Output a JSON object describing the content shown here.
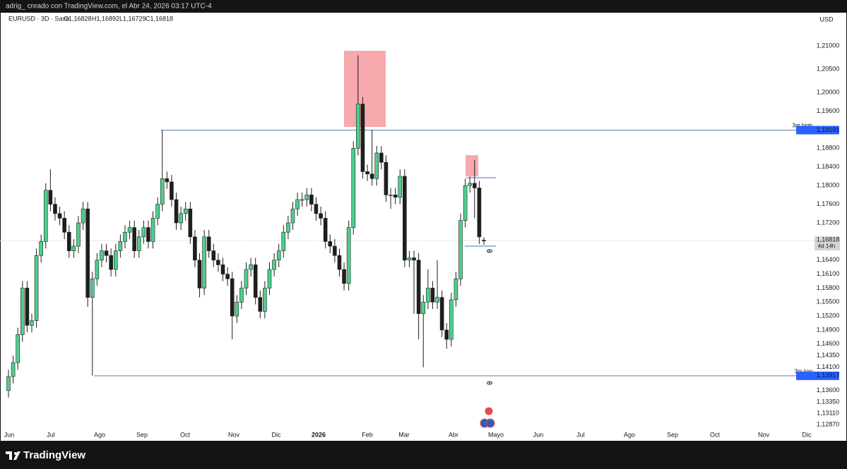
{
  "header": "adrig_ creado con TradingView.com, el Abr 24, 2026 03:17 UTC-4",
  "brand": "TradingView",
  "chart_data": {
    "type": "candlestick",
    "legend": {
      "symbol": "EURUSD · 3D · Saxo",
      "open": "O1,16828",
      "high": "H1,16892",
      "low": "L1,16729",
      "close": "C1,16818"
    },
    "currency": "USD",
    "up_color": "#4fcf8d",
    "down_color": "#1e1e1e",
    "ylim": [
      1.12522,
      1.21712
    ],
    "yticks": [
      {
        "value": 1.21,
        "label": "1,21000"
      },
      {
        "value": 1.205,
        "label": "1,20500"
      },
      {
        "value": 1.2,
        "label": "1,20000"
      },
      {
        "value": 1.196,
        "label": "1,19600"
      },
      {
        "value": 1.188,
        "label": "1,18800"
      },
      {
        "value": 1.184,
        "label": "1,18400"
      },
      {
        "value": 1.18,
        "label": "1,18000"
      },
      {
        "value": 1.176,
        "label": "1,17600"
      },
      {
        "value": 1.172,
        "label": "1,17200"
      },
      {
        "value": 1.164,
        "label": "1,16400"
      },
      {
        "value": 1.161,
        "label": "1,16100"
      },
      {
        "value": 1.158,
        "label": "1,15800"
      },
      {
        "value": 1.155,
        "label": "1,15500"
      },
      {
        "value": 1.152,
        "label": "1,15200"
      },
      {
        "value": 1.149,
        "label": "1,14900"
      },
      {
        "value": 1.146,
        "label": "1,14600"
      },
      {
        "value": 1.1435,
        "label": "1,14350"
      },
      {
        "value": 1.141,
        "label": "1,14100"
      },
      {
        "value": 1.136,
        "label": "1,13600"
      },
      {
        "value": 1.1335,
        "label": "1,13350"
      },
      {
        "value": 1.1311,
        "label": "1,13110"
      },
      {
        "value": 1.1287,
        "label": "1,12870"
      }
    ],
    "xticks": [
      "Jun",
      "Jul",
      "Ago",
      "Sep",
      "Oct",
      "Nov",
      "Dic",
      "2026",
      "Feb",
      "Mar",
      "Abr",
      "Mayo",
      "Jun",
      "Jul",
      "Ago",
      "Sep",
      "Oct",
      "Nov",
      "Dic"
    ],
    "levels": [
      {
        "name": "3m high",
        "value": 1.19191,
        "label": "1,19191"
      },
      {
        "name": "3m low",
        "value": 1.13917,
        "label": "1,13917"
      }
    ],
    "last_price": {
      "value": 1.16818,
      "label": "1,16818",
      "countdown": "4d 14h"
    },
    "ohlc": [
      [
        1.136,
        1.1405,
        1.1345,
        1.139
      ],
      [
        1.139,
        1.1435,
        1.1375,
        1.142
      ],
      [
        1.142,
        1.1495,
        1.1405,
        1.148
      ],
      [
        1.148,
        1.1595,
        1.1465,
        1.158
      ],
      [
        1.158,
        1.1595,
        1.1485,
        1.15
      ],
      [
        1.15,
        1.1525,
        1.1485,
        1.151
      ],
      [
        1.151,
        1.1665,
        1.1495,
        1.165
      ],
      [
        1.165,
        1.1695,
        1.1635,
        1.168
      ],
      [
        1.168,
        1.1805,
        1.1665,
        1.179
      ],
      [
        1.179,
        1.1835,
        1.1745,
        1.176
      ],
      [
        1.176,
        1.1775,
        1.1725,
        1.174
      ],
      [
        1.174,
        1.1755,
        1.1715,
        1.173
      ],
      [
        1.173,
        1.1745,
        1.1685,
        1.17
      ],
      [
        1.17,
        1.1715,
        1.1645,
        1.166
      ],
      [
        1.166,
        1.1685,
        1.1645,
        1.167
      ],
      [
        1.167,
        1.1735,
        1.1655,
        1.172
      ],
      [
        1.172,
        1.1765,
        1.1705,
        1.175
      ],
      [
        1.175,
        1.1765,
        1.154,
        1.156
      ],
      [
        1.156,
        1.1615,
        1.1392,
        1.16
      ],
      [
        1.16,
        1.1655,
        1.1585,
        1.164
      ],
      [
        1.164,
        1.1675,
        1.1625,
        1.166
      ],
      [
        1.166,
        1.1675,
        1.1635,
        1.165
      ],
      [
        1.165,
        1.1665,
        1.1605,
        1.162
      ],
      [
        1.162,
        1.1675,
        1.1605,
        1.166
      ],
      [
        1.166,
        1.1695,
        1.1645,
        1.168
      ],
      [
        1.168,
        1.1715,
        1.1665,
        1.17
      ],
      [
        1.17,
        1.1725,
        1.1685,
        1.171
      ],
      [
        1.171,
        1.1725,
        1.1645,
        1.166
      ],
      [
        1.166,
        1.1705,
        1.1645,
        1.169
      ],
      [
        1.169,
        1.1725,
        1.1675,
        1.171
      ],
      [
        1.171,
        1.1725,
        1.1665,
        1.168
      ],
      [
        1.168,
        1.1745,
        1.1665,
        1.173
      ],
      [
        1.173,
        1.1775,
        1.1715,
        1.176
      ],
      [
        1.176,
        1.1919,
        1.1745,
        1.1815
      ],
      [
        1.1815,
        1.183,
        1.1793,
        1.1808
      ],
      [
        1.1808,
        1.1823,
        1.1755,
        1.177
      ],
      [
        1.177,
        1.1785,
        1.1705,
        1.172
      ],
      [
        1.172,
        1.1755,
        1.1705,
        1.174
      ],
      [
        1.174,
        1.1765,
        1.1725,
        1.175
      ],
      [
        1.175,
        1.1765,
        1.1675,
        1.169
      ],
      [
        1.169,
        1.1705,
        1.1625,
        1.164
      ],
      [
        1.164,
        1.1655,
        1.156,
        1.158
      ],
      [
        1.158,
        1.1705,
        1.1565,
        1.169
      ],
      [
        1.169,
        1.1705,
        1.1645,
        1.166
      ],
      [
        1.166,
        1.1675,
        1.1625,
        1.164
      ],
      [
        1.164,
        1.1655,
        1.1615,
        1.163
      ],
      [
        1.163,
        1.1645,
        1.1595,
        1.161
      ],
      [
        1.161,
        1.1625,
        1.1585,
        1.16
      ],
      [
        1.16,
        1.1615,
        1.147,
        1.152
      ],
      [
        1.152,
        1.1565,
        1.1505,
        1.155
      ],
      [
        1.155,
        1.1595,
        1.1535,
        1.158
      ],
      [
        1.158,
        1.1635,
        1.1565,
        1.162
      ],
      [
        1.162,
        1.1645,
        1.1605,
        1.163
      ],
      [
        1.163,
        1.1645,
        1.1545,
        1.156
      ],
      [
        1.156,
        1.1575,
        1.1515,
        1.153
      ],
      [
        1.153,
        1.1595,
        1.1515,
        1.158
      ],
      [
        1.158,
        1.1635,
        1.1565,
        1.162
      ],
      [
        1.162,
        1.1655,
        1.1605,
        1.164
      ],
      [
        1.164,
        1.1675,
        1.1625,
        1.166
      ],
      [
        1.166,
        1.1715,
        1.1645,
        1.17
      ],
      [
        1.17,
        1.1735,
        1.1685,
        1.172
      ],
      [
        1.172,
        1.1765,
        1.1705,
        1.175
      ],
      [
        1.175,
        1.1785,
        1.1735,
        1.177
      ],
      [
        1.177,
        1.1785,
        1.1755,
        1.177
      ],
      [
        1.177,
        1.1795,
        1.1755,
        1.178
      ],
      [
        1.178,
        1.1795,
        1.1745,
        1.176
      ],
      [
        1.176,
        1.1775,
        1.1725,
        1.174
      ],
      [
        1.174,
        1.1755,
        1.1715,
        1.173
      ],
      [
        1.173,
        1.1745,
        1.1665,
        1.168
      ],
      [
        1.168,
        1.1695,
        1.1655,
        1.167
      ],
      [
        1.167,
        1.1685,
        1.1635,
        1.165
      ],
      [
        1.165,
        1.1665,
        1.1605,
        1.162
      ],
      [
        1.162,
        1.1635,
        1.1575,
        1.159
      ],
      [
        1.159,
        1.1725,
        1.1575,
        1.171
      ],
      [
        1.171,
        1.1895,
        1.1695,
        1.188
      ],
      [
        1.188,
        1.208,
        1.1865,
        1.1975
      ],
      [
        1.1975,
        1.199,
        1.1815,
        1.183
      ],
      [
        1.183,
        1.1845,
        1.181,
        1.1825
      ],
      [
        1.1825,
        1.192,
        1.18,
        1.1815
      ],
      [
        1.1815,
        1.1885,
        1.18,
        1.187
      ],
      [
        1.187,
        1.1885,
        1.1835,
        1.185
      ],
      [
        1.185,
        1.1865,
        1.1765,
        1.178
      ],
      [
        1.178,
        1.1795,
        1.175,
        1.178
      ],
      [
        1.178,
        1.1795,
        1.176,
        1.1775
      ],
      [
        1.1775,
        1.1835,
        1.176,
        1.182
      ],
      [
        1.182,
        1.1835,
        1.1625,
        1.164
      ],
      [
        1.164,
        1.166,
        1.1625,
        1.1645
      ],
      [
        1.1645,
        1.166,
        1.1525,
        1.164
      ],
      [
        1.164,
        1.1655,
        1.147,
        1.1525
      ],
      [
        1.1525,
        1.1565,
        1.141,
        1.155
      ],
      [
        1.155,
        1.162,
        1.1535,
        1.158
      ],
      [
        1.158,
        1.1595,
        1.1535,
        1.155
      ],
      [
        1.155,
        1.164,
        1.1535,
        1.156
      ],
      [
        1.156,
        1.1575,
        1.1475,
        1.149
      ],
      [
        1.149,
        1.1505,
        1.145,
        1.147
      ],
      [
        1.147,
        1.157,
        1.1455,
        1.1555
      ],
      [
        1.1555,
        1.1615,
        1.154,
        1.16
      ],
      [
        1.16,
        1.174,
        1.1585,
        1.1725
      ],
      [
        1.1725,
        1.1815,
        1.171,
        1.18
      ],
      [
        1.18,
        1.182,
        1.1785,
        1.1805
      ],
      [
        1.1805,
        1.1855,
        1.173,
        1.1795
      ],
      [
        1.1795,
        1.181,
        1.1675,
        1.169
      ],
      [
        1.16828,
        1.16892,
        1.16729,
        1.16818
      ]
    ]
  }
}
